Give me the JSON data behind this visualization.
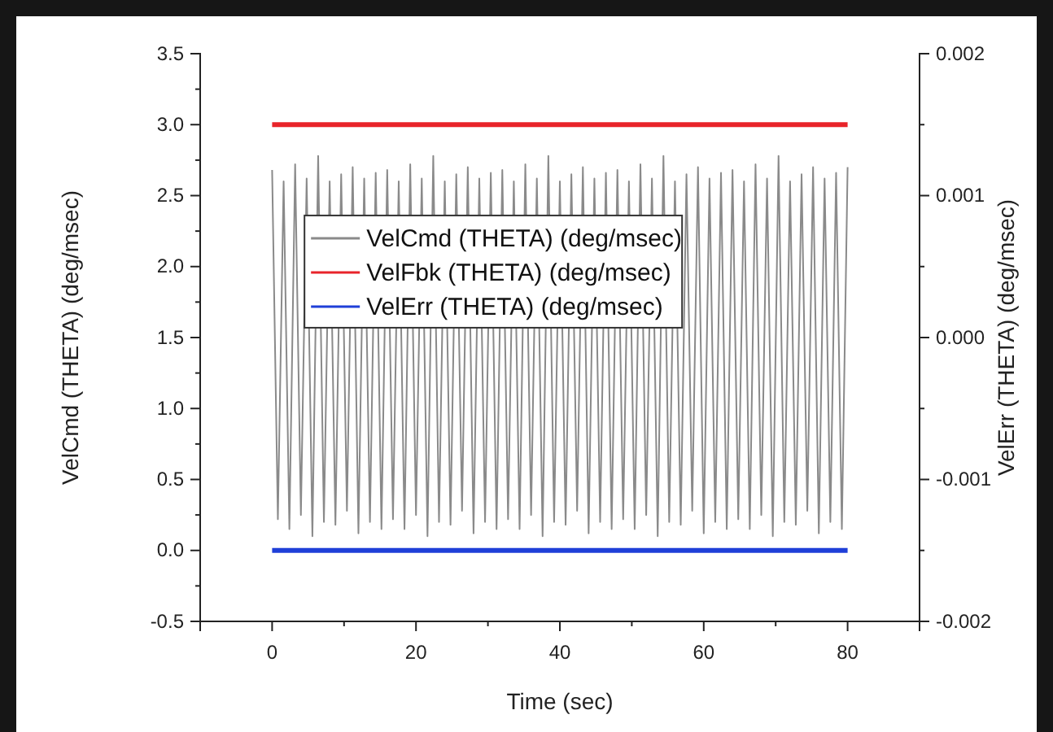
{
  "chart_data": {
    "type": "line",
    "xlabel": "Time (sec)",
    "ylabel": "VelCmd (THETA) (deg/msec)",
    "y2label": "VelErr (THETA) (deg/msec)",
    "xlim": [
      -10,
      90
    ],
    "xticks": [
      0,
      {
        "value": 10,
        "label": null
      },
      20,
      {
        "value": 30,
        "label": null
      },
      40,
      {
        "value": 50,
        "label": null
      },
      60,
      {
        "value": 70,
        "label": null
      },
      80
    ],
    "ylim": [
      -0.5,
      3.5
    ],
    "yticks": [
      -0.5,
      {
        "value": -0.25,
        "label": null
      },
      {
        "value": 0,
        "label": "0.0"
      },
      {
        "value": 0.25,
        "label": null
      },
      0.5,
      {
        "value": 0.75,
        "label": null
      },
      {
        "value": 1,
        "label": "1.0"
      },
      {
        "value": 1.25,
        "label": null
      },
      1.5,
      {
        "value": 1.75,
        "label": null
      },
      {
        "value": 2,
        "label": "2.0"
      },
      {
        "value": 2.25,
        "label": null
      },
      2.5,
      {
        "value": 2.75,
        "label": null
      },
      {
        "value": 3,
        "label": "3.0"
      },
      {
        "value": 3.25,
        "label": null
      },
      3.5
    ],
    "y2lim": [
      -0.002,
      0.002
    ],
    "y2ticks": [
      -0.002,
      {
        "value": -0.0015,
        "label": null
      },
      -0.001,
      {
        "value": -0.0005,
        "label": null
      },
      {
        "value": 0,
        "label": "0.000"
      },
      {
        "value": 0.0005,
        "label": null
      },
      0.001,
      {
        "value": 0.0015,
        "label": null
      },
      0.002
    ],
    "legend": "top left",
    "grid": false,
    "series": [
      {
        "name": "VelCmd (THETA) (deg/msec)",
        "color": "#8a8a8a",
        "x": [
          0,
          0.8,
          1.6,
          2.4,
          3.2,
          4,
          4.8,
          5.6,
          6.4,
          7.2,
          8,
          8.8,
          9.6,
          10.4,
          11.2,
          12,
          12.8,
          13.6,
          14.4,
          15.2,
          16,
          16.8,
          17.6,
          18.4,
          19.2,
          20,
          20.8,
          21.6,
          22.4,
          23.2,
          24,
          24.8,
          25.6,
          26.4,
          27.2,
          28,
          28.8,
          29.6,
          30.4,
          31.2,
          32,
          32.8,
          33.6,
          34.4,
          35.2,
          36,
          36.8,
          37.6,
          38.4,
          39.2,
          40,
          40.8,
          41.6,
          42.4,
          43.2,
          44,
          44.8,
          45.6,
          46.4,
          47.2,
          48,
          48.8,
          49.6,
          50.4,
          51.2,
          52,
          52.8,
          53.6,
          54.4,
          55.2,
          56,
          56.8,
          57.6,
          58.4,
          59.2,
          60,
          60.8,
          61.6,
          62.4,
          63.2,
          64,
          64.8,
          65.6,
          66.4,
          67.2,
          68,
          68.8,
          69.6,
          70.4,
          71.2,
          72,
          72.8,
          73.6,
          74.4,
          75.2,
          76,
          76.8,
          77.6,
          78.4,
          79.2,
          80
        ],
        "values": [
          2.68,
          0.22,
          2.6,
          0.15,
          2.72,
          0.25,
          2.62,
          0.1,
          2.78,
          0.2,
          2.6,
          0.18,
          2.65,
          0.28,
          2.7,
          0.12,
          2.62,
          0.2,
          2.66,
          0.15,
          2.68,
          0.22,
          2.6,
          0.15,
          2.72,
          0.25,
          2.62,
          0.1,
          2.78,
          0.2,
          2.6,
          0.18,
          2.65,
          0.28,
          2.7,
          0.12,
          2.62,
          0.2,
          2.66,
          0.15,
          2.68,
          0.22,
          2.6,
          0.15,
          2.72,
          0.25,
          2.62,
          0.1,
          2.78,
          0.2,
          2.6,
          0.18,
          2.65,
          0.28,
          2.7,
          0.12,
          2.62,
          0.2,
          2.66,
          0.15,
          2.68,
          0.22,
          2.6,
          0.15,
          2.72,
          0.25,
          2.62,
          0.1,
          2.78,
          0.2,
          2.6,
          0.18,
          2.65,
          0.28,
          2.7,
          0.12,
          2.62,
          0.2,
          2.66,
          0.15,
          2.68,
          0.22,
          2.6,
          0.15,
          2.72,
          0.25,
          2.62,
          0.1,
          2.78,
          0.2,
          2.6,
          0.18,
          2.65,
          0.28,
          2.7,
          0.12,
          2.62,
          0.2,
          2.66,
          0.15,
          2.7
        ]
      },
      {
        "name": "VelFbk (THETA) (deg/msec)",
        "color": "#e8242a",
        "x": [
          0,
          80
        ],
        "values": [
          3,
          3
        ]
      },
      {
        "name": "VelErr (THETA) (deg/msec)",
        "color": "#1f3fd8",
        "axis": "y2",
        "x": [
          0,
          80
        ],
        "values": [
          -0.0015,
          -0.0015
        ]
      }
    ]
  }
}
